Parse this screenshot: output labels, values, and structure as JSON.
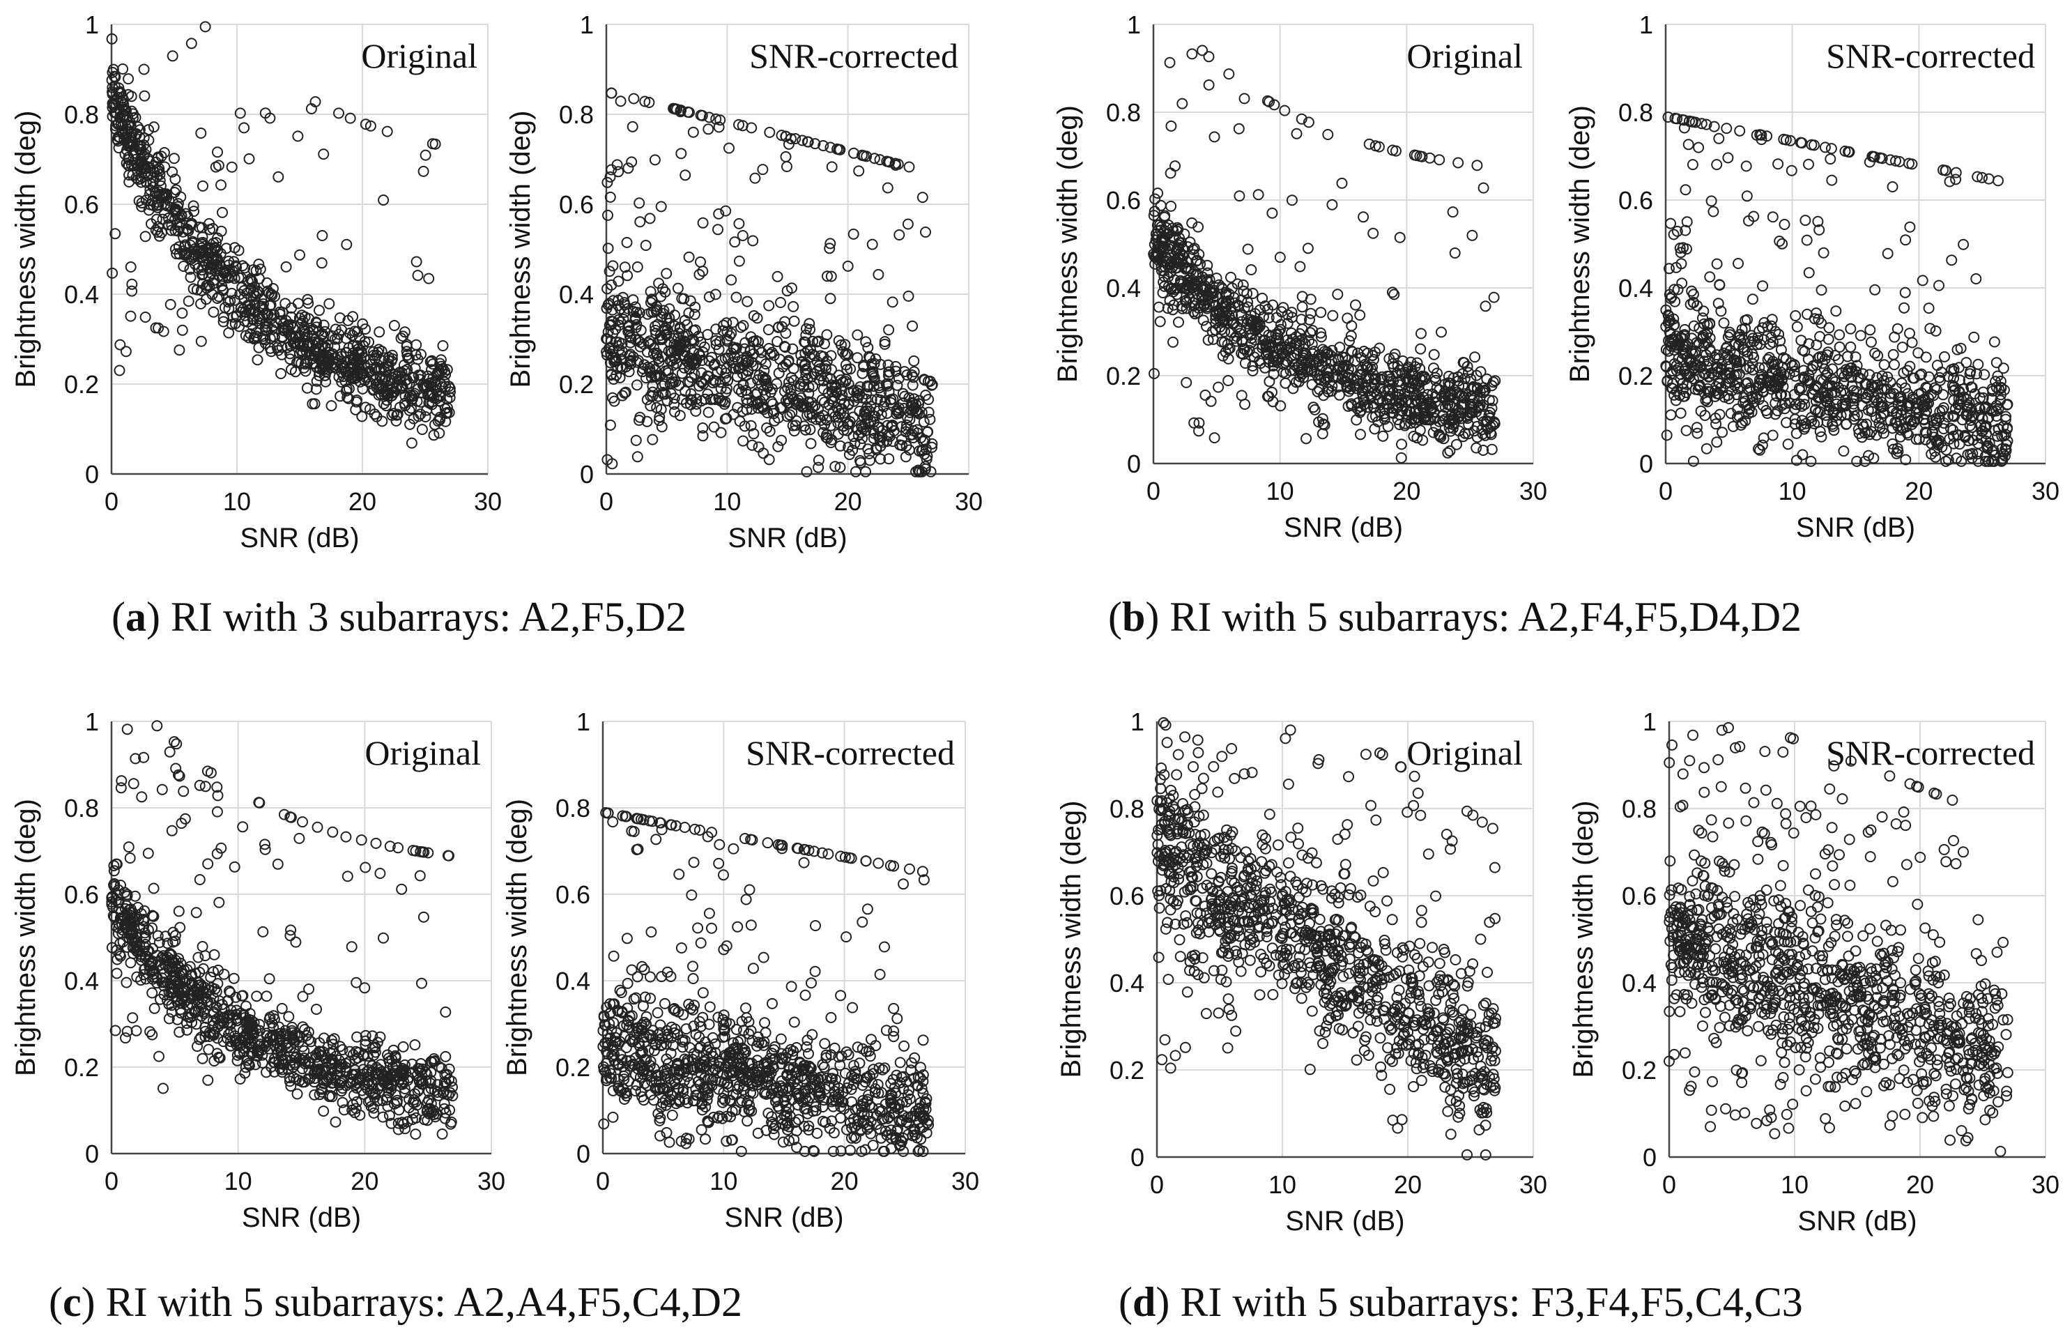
{
  "figure": {
    "panels": [
      {
        "id": "a",
        "letter": "a",
        "caption_text": "RI with 3 subarrays: A2,F5,D2"
      },
      {
        "id": "b",
        "letter": "b",
        "caption_text": "RI with 5 subarrays: A2,F4,F5,D4,D2"
      },
      {
        "id": "c",
        "letter": "c",
        "caption_text": "RI with 5 subarrays: A2,A4,F5,C4,D2"
      },
      {
        "id": "d",
        "letter": "d",
        "caption_text": "RI with 5 subarrays: F3,F4,F5,C4,C3"
      }
    ]
  },
  "style": {
    "marker_color": "#222222",
    "grid_color": "#d9d9d9",
    "axis_color": "#444444",
    "text_color": "#111111"
  },
  "chart_data": [
    {
      "panel": "a",
      "type": "scatter",
      "title": "Original",
      "xlabel": "SNR (dB)",
      "ylabel": "Brightness width (deg)",
      "xlim": [
        0,
        30
      ],
      "ylim": [
        0,
        1
      ],
      "xticks": [
        "0",
        "10",
        "20",
        "30"
      ],
      "yticks": [
        "0",
        "0.2",
        "0.4",
        "0.6",
        "0.8",
        "1"
      ],
      "n_points": 1000,
      "x_range": [
        0,
        27
      ],
      "pattern": {
        "kind": "decay",
        "y0": 0.84,
        "y_end": 0.12,
        "scatter": 0.045,
        "outlier_frac": 0.13,
        "outlier_range": [
          0.15,
          1.0
        ]
      }
    },
    {
      "panel": "a",
      "type": "scatter",
      "title": "SNR-corrected",
      "xlabel": "SNR (dB)",
      "ylabel": "Brightness width (deg)",
      "xlim": [
        0,
        30
      ],
      "ylim": [
        0,
        1
      ],
      "xticks": [
        "0",
        "10",
        "20",
        "30"
      ],
      "yticks": [
        "0",
        "0.2",
        "0.4",
        "0.6",
        "0.8",
        "1"
      ],
      "n_points": 1000,
      "x_range": [
        0,
        27
      ],
      "pattern": {
        "kind": "linear",
        "y0": 0.3,
        "y_end": 0.12,
        "scatter": 0.07,
        "outlier_frac": 0.3,
        "outlier_range": [
          0.02,
          1.0
        ]
      }
    },
    {
      "panel": "b",
      "type": "scatter",
      "title": "Original",
      "xlabel": "SNR (dB)",
      "ylabel": "Brightness width (deg)",
      "xlim": [
        0,
        30
      ],
      "ylim": [
        0,
        1
      ],
      "xticks": [
        "0",
        "10",
        "20",
        "30"
      ],
      "yticks": [
        "0",
        "0.2",
        "0.4",
        "0.6",
        "0.8",
        "1"
      ],
      "n_points": 1000,
      "x_range": [
        0,
        27
      ],
      "pattern": {
        "kind": "decay",
        "y0": 0.52,
        "y_end": 0.09,
        "scatter": 0.045,
        "outlier_frac": 0.16,
        "outlier_range": [
          0.05,
          1.0
        ]
      }
    },
    {
      "panel": "b",
      "type": "scatter",
      "title": "SNR-corrected",
      "xlabel": "SNR (dB)",
      "ylabel": "Brightness width (deg)",
      "xlim": [
        0,
        30
      ],
      "ylim": [
        0,
        1
      ],
      "xticks": [
        "0",
        "10",
        "20",
        "30"
      ],
      "yticks": [
        "0",
        "0.2",
        "0.4",
        "0.6",
        "0.8",
        "1"
      ],
      "n_points": 1000,
      "x_range": [
        0,
        27
      ],
      "pattern": {
        "kind": "linear",
        "y0": 0.24,
        "y_end": 0.09,
        "scatter": 0.065,
        "outlier_frac": 0.25,
        "outlier_range": [
          0.0,
          1.0
        ]
      }
    },
    {
      "panel": "c",
      "type": "scatter",
      "title": "Original",
      "xlabel": "SNR (dB)",
      "ylabel": "Brightness width (deg)",
      "xlim": [
        0,
        30
      ],
      "ylim": [
        0,
        1
      ],
      "xticks": [
        "0",
        "10",
        "20",
        "30"
      ],
      "yticks": [
        "0",
        "0.2",
        "0.4",
        "0.6",
        "0.8",
        "1"
      ],
      "n_points": 1000,
      "x_range": [
        0,
        27
      ],
      "pattern": {
        "kind": "decay",
        "y0": 0.58,
        "y_end": 0.1,
        "scatter": 0.045,
        "outlier_frac": 0.16,
        "outlier_range": [
          0.15,
          1.0
        ]
      }
    },
    {
      "panel": "c",
      "type": "scatter",
      "title": "SNR-corrected",
      "xlabel": "SNR (dB)",
      "ylabel": "Brightness width (deg)",
      "xlim": [
        0,
        30
      ],
      "ylim": [
        0,
        1
      ],
      "xticks": [
        "0",
        "10",
        "20",
        "30"
      ],
      "yticks": [
        "0",
        "0.2",
        "0.4",
        "0.6",
        "0.8",
        "1"
      ],
      "n_points": 1000,
      "x_range": [
        0,
        27
      ],
      "pattern": {
        "kind": "linear",
        "y0": 0.24,
        "y_end": 0.1,
        "scatter": 0.065,
        "outlier_frac": 0.28,
        "outlier_range": [
          0.02,
          1.0
        ]
      }
    },
    {
      "panel": "d",
      "type": "scatter",
      "title": "Original",
      "xlabel": "SNR (dB)",
      "ylabel": "Brightness width (deg)",
      "xlim": [
        0,
        30
      ],
      "ylim": [
        0,
        1
      ],
      "xticks": [
        "0",
        "10",
        "20",
        "30"
      ],
      "yticks": [
        "0",
        "0.2",
        "0.4",
        "0.6",
        "0.8",
        "1"
      ],
      "n_points": 1000,
      "x_range": [
        0,
        27
      ],
      "pattern": {
        "kind": "linear",
        "y0": 0.72,
        "y_end": 0.2,
        "scatter": 0.09,
        "outlier_frac": 0.22,
        "outlier_range": [
          0.2,
          1.0
        ]
      }
    },
    {
      "panel": "d",
      "type": "scatter",
      "title": "SNR-corrected",
      "xlabel": "SNR (dB)",
      "ylabel": "Brightness width (deg)",
      "xlim": [
        0,
        30
      ],
      "ylim": [
        0,
        1
      ],
      "xticks": [
        "0",
        "10",
        "20",
        "30"
      ],
      "yticks": [
        "0",
        "0.2",
        "0.4",
        "0.6",
        "0.8",
        "1"
      ],
      "n_points": 1000,
      "x_range": [
        0,
        27
      ],
      "pattern": {
        "kind": "linear",
        "y0": 0.52,
        "y_end": 0.22,
        "scatter": 0.09,
        "outlier_frac": 0.28,
        "outlier_range": [
          0.05,
          1.0
        ]
      }
    }
  ]
}
